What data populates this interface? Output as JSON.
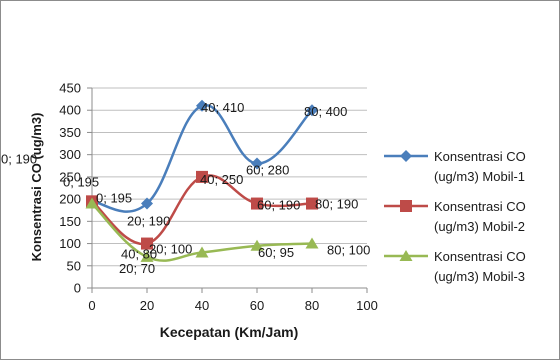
{
  "chart_data": {
    "type": "line",
    "xlabel": "Kecepatan (Km/Jam)",
    "ylabel": "Konsentrasi CO (ug/m3)",
    "xlim": [
      0,
      100
    ],
    "ylim": [
      0,
      450
    ],
    "x_ticks": [
      0,
      20,
      40,
      60,
      80,
      100
    ],
    "y_ticks": [
      0,
      50,
      100,
      150,
      200,
      250,
      300,
      350,
      400,
      450
    ],
    "grid": "horizontal",
    "smooth": true,
    "legend_position": "right",
    "x": [
      0,
      20,
      40,
      60,
      80
    ],
    "series": [
      {
        "name": "Konsentrasi CO (ug/m3) Mobil-1",
        "legend_lines": [
          "Konsentrasi CO",
          "(ug/m3) Mobil-1"
        ],
        "color": "#4a7ebb",
        "marker": "diamond",
        "values": [
          195,
          190,
          410,
          280,
          400
        ],
        "labels": [
          "0; 195",
          "20; 190",
          "40; 410",
          "60; 280",
          "80; 400"
        ]
      },
      {
        "name": "Konsentrasi CO (ug/m3) Mobil-2",
        "legend_lines": [
          "Konsentrasi CO",
          "(ug/m3) Mobil-2"
        ],
        "color": "#be4b48",
        "marker": "square",
        "values": [
          195,
          100,
          250,
          190,
          190
        ],
        "labels": [
          "0; 195",
          "20; 100",
          "40; 250",
          "60; 190",
          "80; 190"
        ]
      },
      {
        "name": "Konsentrasi CO (ug/m3) Mobil-3",
        "legend_lines": [
          "Konsentrasi CO",
          "(ug/m3) Mobil-3"
        ],
        "color": "#98b954",
        "marker": "triangle",
        "values": [
          190,
          70,
          80,
          95,
          100
        ],
        "labels": [
          "0; 190",
          "20; 70",
          "40; 80",
          "60; 95",
          "80; 100"
        ]
      }
    ]
  }
}
